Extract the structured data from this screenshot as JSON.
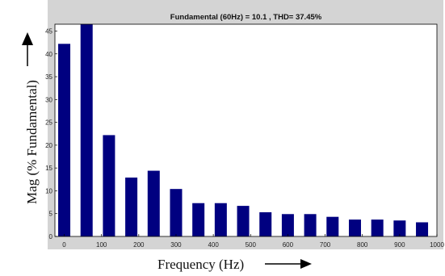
{
  "chart_data": {
    "type": "bar",
    "title": "Fundamental (60Hz) = 10.1 , THD= 37.45%",
    "xlabel": "Frequency (Hz)",
    "ylabel": "Mag (% Fundamental)",
    "x": [
      0,
      60,
      120,
      180,
      240,
      300,
      360,
      420,
      480,
      540,
      600,
      660,
      720,
      780,
      840,
      900,
      960
    ],
    "values": [
      42.2,
      46.5,
      22.2,
      12.9,
      14.4,
      10.4,
      7.3,
      7.3,
      6.7,
      5.3,
      4.9,
      4.9,
      4.3,
      3.7,
      3.7,
      3.5,
      3.1
    ],
    "xlim": [
      -25,
      1000
    ],
    "ylim": [
      0,
      46.5
    ],
    "xticks": [
      0,
      100,
      200,
      300,
      400,
      500,
      600,
      700,
      800,
      900,
      1000
    ],
    "yticks": [
      0,
      5,
      10,
      15,
      20,
      25,
      30,
      35,
      40,
      45
    ],
    "grid": false,
    "bar_color": "#000080"
  }
}
